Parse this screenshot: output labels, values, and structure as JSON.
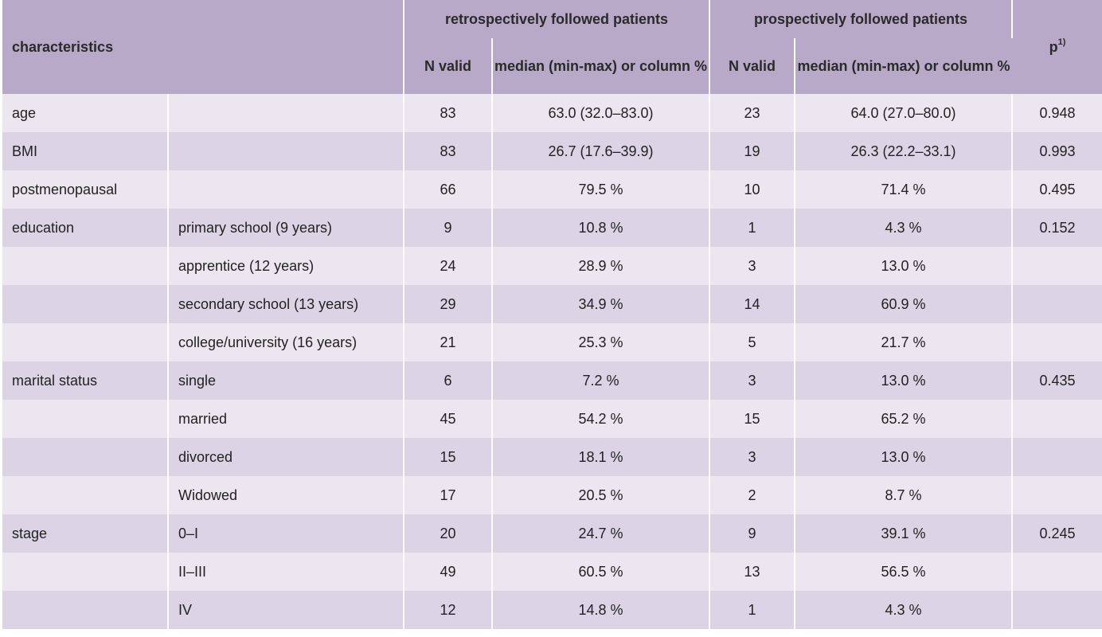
{
  "header": {
    "characteristics": "characteristics",
    "retro_group": "retrospectively followed patients",
    "pro_group": "prospectively followed patients",
    "n_valid": "N valid",
    "median_label": "median (min-max) or column %",
    "p_label": "p",
    "p_sup": "1)"
  },
  "rows": [
    {
      "char": "age",
      "sub": "",
      "rn": "83",
      "rm": "63.0 (32.0–83.0)",
      "pn": "23",
      "pm": "64.0 (27.0–80.0)",
      "p": "0.948"
    },
    {
      "char": "BMI",
      "sub": "",
      "rn": "83",
      "rm": "26.7 (17.6–39.9)",
      "pn": "19",
      "pm": "26.3 (22.2–33.1)",
      "p": "0.993"
    },
    {
      "char": "postmenopausal",
      "sub": "",
      "rn": "66",
      "rm": "79.5 %",
      "pn": "10",
      "pm": "71.4 %",
      "p": "0.495"
    },
    {
      "char": "education",
      "sub": "primary school (9 years)",
      "rn": "9",
      "rm": "10.8 %",
      "pn": "1",
      "pm": "4.3 %",
      "p": "0.152"
    },
    {
      "char": "",
      "sub": "apprentice (12 years)",
      "rn": "24",
      "rm": "28.9 %",
      "pn": "3",
      "pm": "13.0 %",
      "p": ""
    },
    {
      "char": "",
      "sub": "secondary school (13 years)",
      "rn": "29",
      "rm": "34.9 %",
      "pn": "14",
      "pm": "60.9 %",
      "p": ""
    },
    {
      "char": "",
      "sub": "college/university (16 years)",
      "rn": "21",
      "rm": "25.3 %",
      "pn": "5",
      "pm": "21.7 %",
      "p": ""
    },
    {
      "char": "marital status",
      "sub": "single",
      "rn": "6",
      "rm": "7.2 %",
      "pn": "3",
      "pm": "13.0 %",
      "p": "0.435"
    },
    {
      "char": "",
      "sub": "married",
      "rn": "45",
      "rm": "54.2 %",
      "pn": "15",
      "pm": "65.2 %",
      "p": ""
    },
    {
      "char": "",
      "sub": "divorced",
      "rn": "15",
      "rm": "18.1 %",
      "pn": "3",
      "pm": "13.0 %",
      "p": ""
    },
    {
      "char": "",
      "sub": "Widowed",
      "rn": "17",
      "rm": "20.5 %",
      "pn": "2",
      "pm": "8.7 %",
      "p": ""
    },
    {
      "char": "stage",
      "sub": "0–I",
      "rn": "20",
      "rm": "24.7 %",
      "pn": "9",
      "pm": "39.1 %",
      "p": "0.245"
    },
    {
      "char": "",
      "sub": "II–III",
      "rn": "49",
      "rm": "60.5 %",
      "pn": "13",
      "pm": "56.5 %",
      "p": ""
    },
    {
      "char": "",
      "sub": "IV",
      "rn": "12",
      "rm": "14.8 %",
      "pn": "1",
      "pm": "4.3 %",
      "p": ""
    }
  ]
}
